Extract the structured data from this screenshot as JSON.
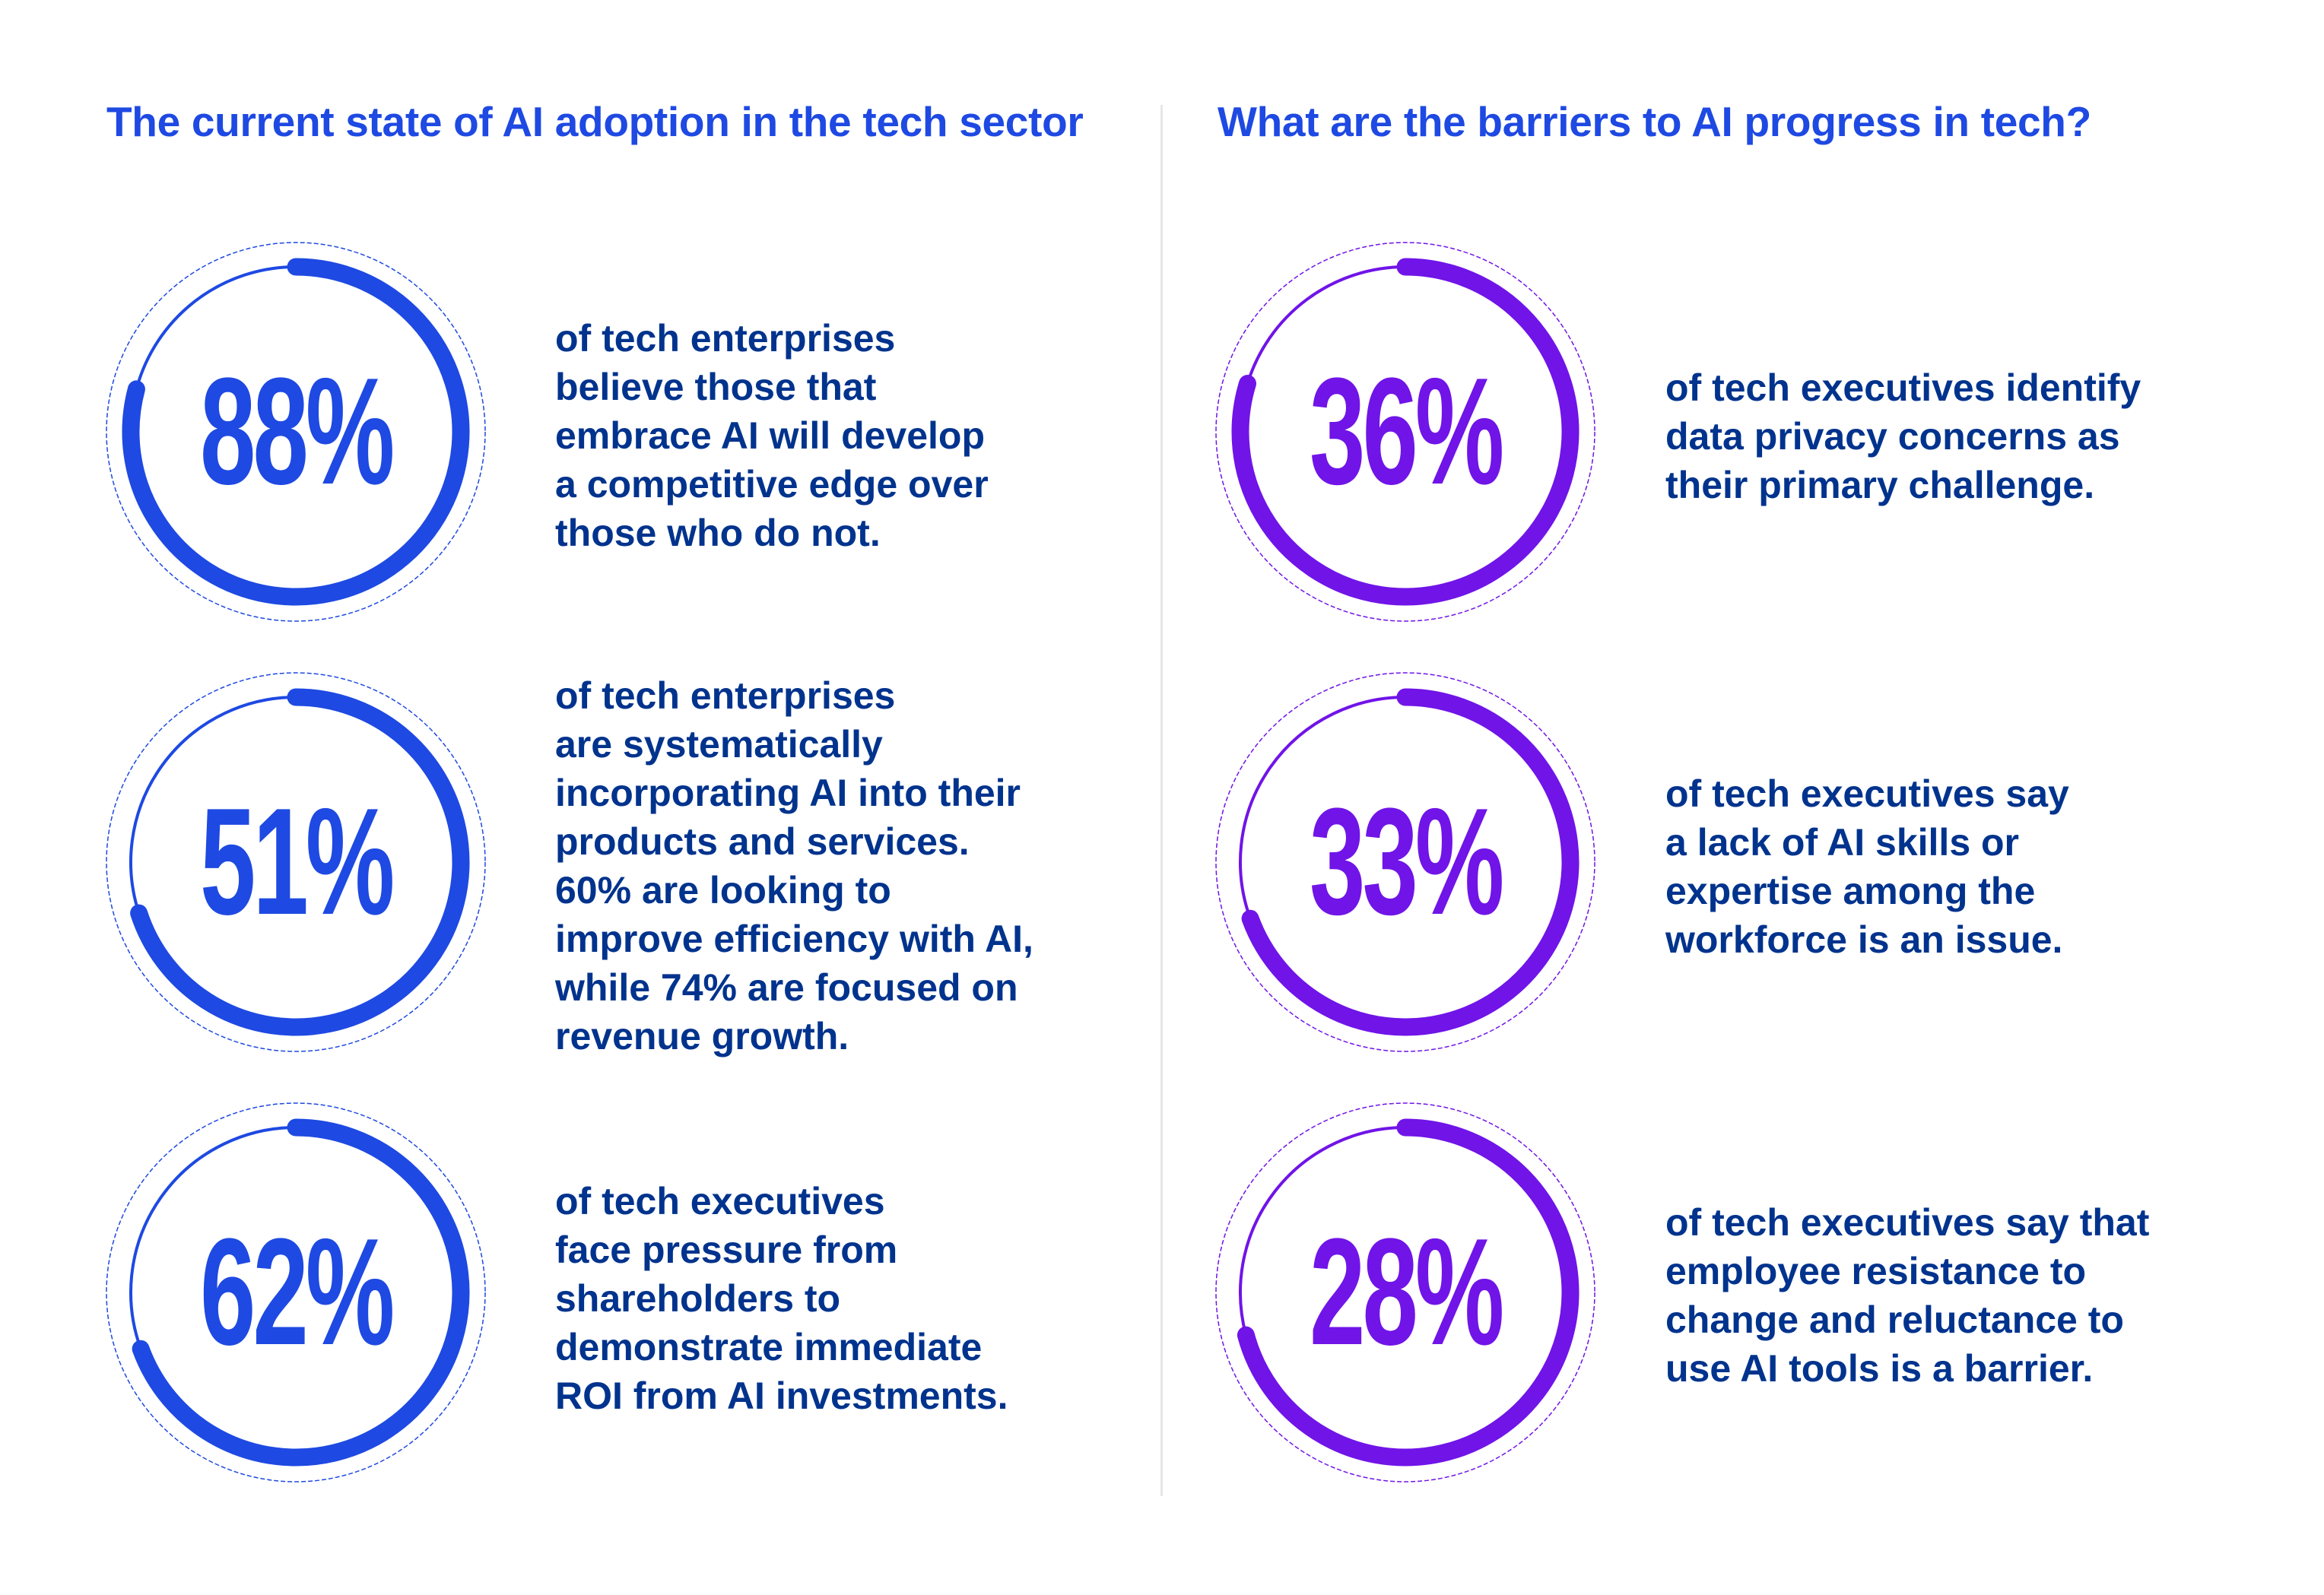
{
  "colors": {
    "blue": "#1E49E2",
    "purple": "#7014E8",
    "text": "#00338D"
  },
  "left": {
    "title": "The current state of AI adoption in the tech sector",
    "stats": [
      {
        "value": "88%",
        "text": "of tech enterprises\nbelieve those that\nembrace AI will develop\na competitive edge over\nthose who do not."
      },
      {
        "value": "51%",
        "text": "of tech enterprises\nare systematically\nincorporating AI into their\nproducts and services.\n60% are looking to\nimprove efficiency with AI,\nwhile 74% are focused on\nrevenue growth."
      },
      {
        "value": "62%",
        "text": "of tech executives\nface pressure from\nshareholders to\ndemonstrate immediate\nROI from AI investments."
      }
    ]
  },
  "right": {
    "title": "What are the barriers to AI progress in tech?",
    "stats": [
      {
        "value": "36%",
        "text": "of tech executives identify\ndata privacy concerns as\ntheir primary challenge."
      },
      {
        "value": "33%",
        "text": "of tech executives say\na lack of AI skills or\nexpertise among the\nworkforce is an issue."
      },
      {
        "value": "28%",
        "text": "of tech executives say that\nemployee resistance to\nchange and reluctance to\nuse AI tools is a barrier."
      }
    ]
  }
}
